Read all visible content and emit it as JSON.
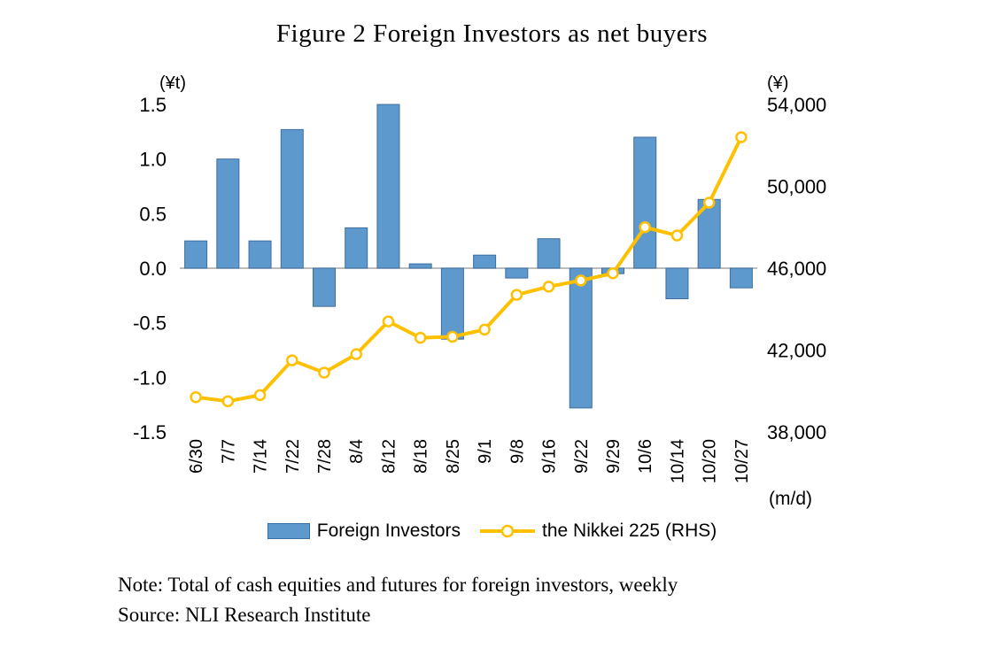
{
  "title": "Figure 2 Foreign Investors as net buyers",
  "chart_data": {
    "type": "combo",
    "categories": [
      "6/30",
      "7/7",
      "7/14",
      "7/22",
      "7/28",
      "8/4",
      "8/12",
      "8/18",
      "8/25",
      "9/1",
      "9/8",
      "9/16",
      "9/22",
      "9/29",
      "10/6",
      "10/14",
      "10/20",
      "10/27"
    ],
    "series": [
      {
        "name": "Foreign Investors",
        "type": "bar",
        "axis": "left",
        "color": "#5D99CC",
        "border_color": "#3D6E9E",
        "values": [
          0.25,
          1.0,
          0.25,
          1.27,
          -0.35,
          0.37,
          1.5,
          0.04,
          -0.65,
          0.12,
          -0.09,
          0.27,
          -1.28,
          -0.05,
          1.2,
          -0.28,
          0.63,
          -0.18
        ]
      },
      {
        "name": "the Nikkei 225 (RHS)",
        "type": "line",
        "axis": "right",
        "color": "#FFC000",
        "marker_fill": "#FFFFFF",
        "values": [
          39700,
          39500,
          39800,
          41500,
          40900,
          41800,
          43400,
          42600,
          42650,
          43000,
          44700,
          45100,
          45400,
          45750,
          48000,
          47600,
          49200,
          52400
        ]
      }
    ],
    "left_axis": {
      "unit": "(¥t)",
      "min": -1.5,
      "max": 1.5,
      "tick_labels": [
        "1.5",
        "1.0",
        "0.5",
        "0.0",
        "-0.5",
        "-1.0",
        "-1.5"
      ],
      "tick_values": [
        1.5,
        1.0,
        0.5,
        0.0,
        -0.5,
        -1.0,
        -1.5
      ]
    },
    "right_axis": {
      "unit": "(¥)",
      "min": 38000,
      "max": 54000,
      "tick_labels": [
        "54,000",
        "50,000",
        "46,000",
        "42,000",
        "38,000"
      ],
      "tick_values": [
        54000,
        50000,
        46000,
        42000,
        38000
      ]
    },
    "x_axis": {
      "unit": "(m/d)"
    },
    "gridlines": false,
    "legend_position": "bottom",
    "axis_line_color": "#A6A6A6"
  },
  "legend": {
    "items": [
      {
        "label": "Foreign Investors",
        "swatch": "bar"
      },
      {
        "label": "the Nikkei 225 (RHS)",
        "swatch": "line-marker"
      }
    ]
  },
  "note": "Note: Total of cash equities and futures for foreign investors, weekly",
  "source": "Source: NLI Research Institute"
}
